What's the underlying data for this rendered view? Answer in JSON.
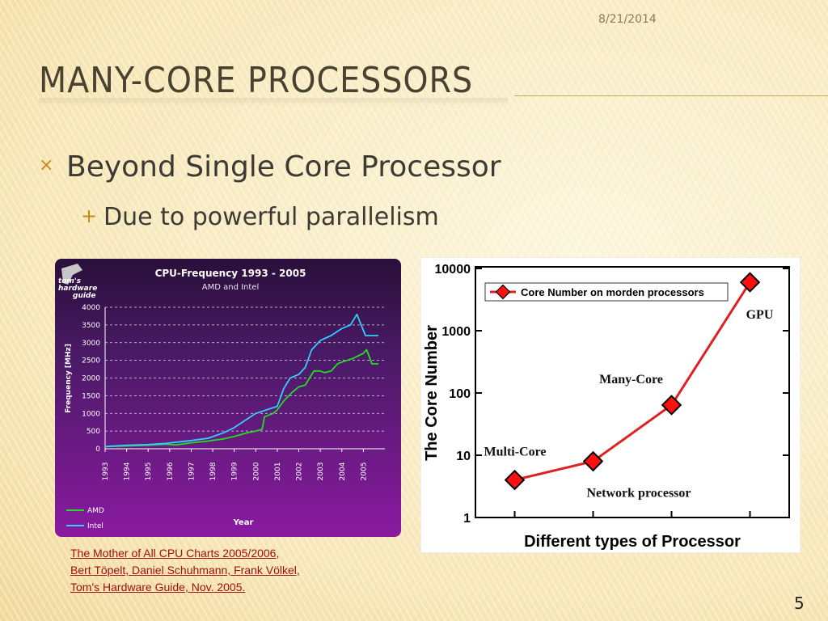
{
  "slide": {
    "date": "8/21/2014",
    "title": "Many-Core Processors",
    "bullet1": "Beyond Single Core Processor",
    "bullet2": "Due to powerful parallelism",
    "bullet1_marker": "×",
    "bullet2_marker": "+",
    "citation": [
      "The Mother of All CPU Charts 2005/2006,",
      "Bert Töpelt, Daniel Schuhmann, Frank Völkel,",
      "Tom's Hardware Guide, Nov. 2005."
    ],
    "page_number": "5",
    "logo_text": [
      "tom's",
      "hardware",
      "guide"
    ]
  },
  "colors": {
    "accent": "#c68a1a",
    "cpu_bg_top": "#2a0f3a",
    "cpu_bg_bottom": "#8a1aa0",
    "amd": "#22dd22",
    "intel": "#33ccff",
    "core_line": "#e02020",
    "marker_fill": "#ff1010"
  },
  "chart_data": [
    {
      "type": "line",
      "title": "CPU-Frequency 1993 - 2005",
      "subtitle": "AMD and Intel",
      "xlabel": "Year",
      "ylabel": "Frequency [MHz]",
      "ylim": [
        0,
        4000
      ],
      "yticks": [
        0,
        500,
        1000,
        1500,
        2000,
        2500,
        3000,
        3500,
        4000
      ],
      "xlim": [
        1993,
        2006
      ],
      "xticks": [
        "1993",
        "1994",
        "1995",
        "1996",
        "1997",
        "1998",
        "1999",
        "2000",
        "2001",
        "2002",
        "2003",
        "2004",
        "2005"
      ],
      "grid": true,
      "legend": "bottom-left",
      "series": [
        {
          "name": "AMD",
          "x": [
            1993,
            1994,
            1995,
            1995.8,
            1996.3,
            1997,
            1997.8,
            1998.5,
            1999,
            1999.6,
            2000,
            2000.3,
            2000.4,
            2000.8,
            2001,
            2001.3,
            2001.7,
            2002,
            2002.3,
            2002.5,
            2002.7,
            2003,
            2003.2,
            2003.5,
            2003.8,
            2004,
            2004.5,
            2005,
            2005.15,
            2005.4,
            2005.7
          ],
          "values": [
            60,
            80,
            100,
            130,
            110,
            170,
            220,
            280,
            350,
            450,
            500,
            550,
            900,
            1000,
            1100,
            1350,
            1600,
            1750,
            1800,
            2000,
            2200,
            2200,
            2150,
            2200,
            2400,
            2450,
            2550,
            2700,
            2800,
            2400,
            2400
          ]
        },
        {
          "name": "Intel",
          "x": [
            1993,
            1994,
            1995,
            1995.8,
            1996.5,
            1997,
            1997.8,
            1998.5,
            1999,
            1999.5,
            2000,
            2000.5,
            2001,
            2001.3,
            2001.6,
            2002,
            2002.3,
            2002.6,
            2003,
            2003.5,
            2004,
            2004.4,
            2004.7,
            2004.9,
            2005.1,
            2005.3,
            2005.7
          ],
          "values": [
            66,
            100,
            120,
            150,
            200,
            233,
            300,
            450,
            600,
            800,
            1000,
            1100,
            1200,
            1700,
            2000,
            2100,
            2300,
            2800,
            3060,
            3200,
            3400,
            3500,
            3800,
            3500,
            3200,
            3200,
            3200
          ]
        }
      ]
    },
    {
      "type": "line",
      "title": "",
      "xlabel": "Different types of Processor",
      "ylabel": "The Core Number",
      "yscale": "log",
      "ylim": [
        1,
        10000
      ],
      "yticks": [
        1,
        10,
        100,
        1000,
        10000
      ],
      "categories": [
        "Multi-Core",
        "Network processor",
        "Many-Core",
        "GPU"
      ],
      "series": [
        {
          "name": "Core Number on morden processors",
          "values": [
            4,
            8,
            64,
            6000
          ]
        }
      ],
      "legend": "top-left",
      "grid": false
    }
  ]
}
